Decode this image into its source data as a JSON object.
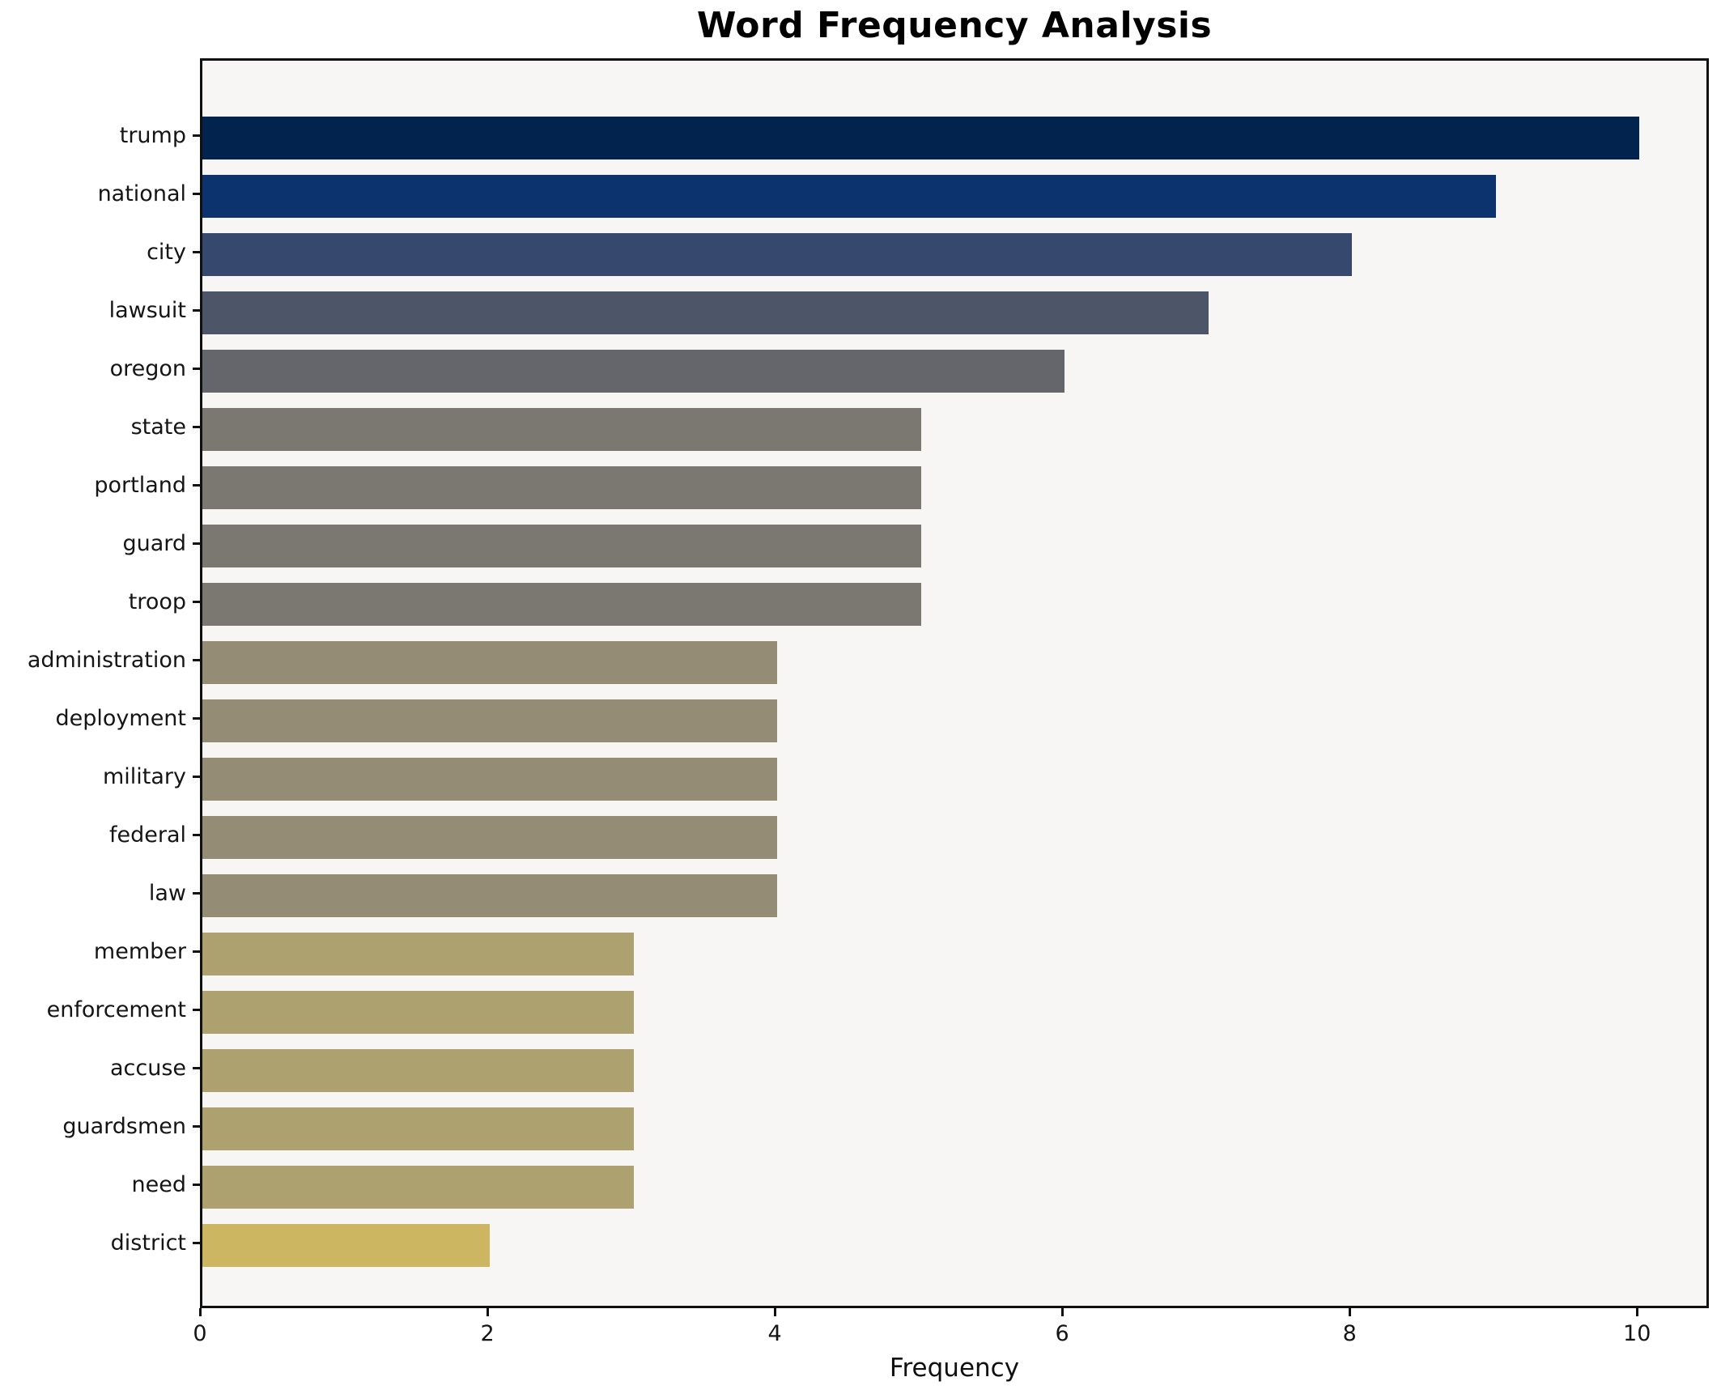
{
  "title": "Word Frequency Analysis",
  "chart_data": {
    "type": "bar",
    "orientation": "horizontal",
    "title": "Word Frequency Analysis",
    "xlabel": "Frequency",
    "ylabel": "",
    "categories": [
      "trump",
      "national",
      "city",
      "lawsuit",
      "oregon",
      "state",
      "portland",
      "guard",
      "troop",
      "administration",
      "deployment",
      "military",
      "federal",
      "law",
      "member",
      "enforcement",
      "accuse",
      "guardsmen",
      "need",
      "district"
    ],
    "values": [
      10,
      9,
      8,
      7,
      6,
      5,
      5,
      5,
      5,
      4,
      4,
      4,
      4,
      4,
      3,
      3,
      3,
      3,
      3,
      2
    ],
    "bar_colors": [
      "#02234e",
      "#0d336e",
      "#37486f",
      "#4d5669",
      "#64666c",
      "#7a7870",
      "#7a7870",
      "#7a7870",
      "#7a7870",
      "#948c74",
      "#948c74",
      "#948c74",
      "#948c74",
      "#948c74",
      "#ada26f",
      "#ada26f",
      "#ada26f",
      "#ada26f",
      "#ada26f",
      "#ccb661"
    ],
    "xlim": [
      0,
      10.5
    ],
    "xticks": [
      0,
      2,
      4,
      6,
      8,
      10
    ],
    "grid": false,
    "legend_position": "none",
    "plot_background": "#f7f6f5",
    "spine_color": "#101010"
  }
}
